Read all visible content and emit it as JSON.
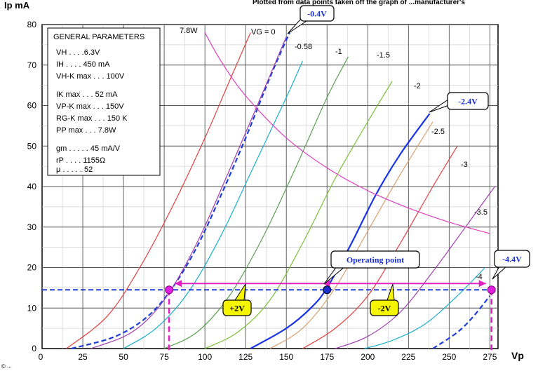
{
  "header_note": "Plotted from data points taken off the graph of ...manufacturer's",
  "copyright": "© ...",
  "chart_data": {
    "type": "line",
    "title": "",
    "xlabel": "Vp",
    "ylabel": "Ip mA",
    "xlim": [
      0,
      280
    ],
    "ylim": [
      0,
      80
    ],
    "x_ticks": [
      0,
      25,
      50,
      75,
      100,
      125,
      150,
      175,
      200,
      225,
      250,
      275
    ],
    "y_ticks": [
      0,
      10,
      20,
      30,
      40,
      50,
      60,
      70,
      80
    ],
    "grid": true,
    "series": [
      {
        "name": "VG = 0",
        "label": "VG = 0",
        "color": "#e0413f",
        "dashed": false,
        "x": [
          15,
          40,
          60,
          80,
          100,
          115,
          128
        ],
        "y": [
          0,
          8,
          20,
          35,
          52,
          66,
          78
        ]
      },
      {
        "name": "-0.4V",
        "label": "-0.4V",
        "color": "#1f3fd8",
        "dashed": true,
        "x": [
          18,
          45,
          65,
          80,
          95,
          110,
          125,
          140,
          152
        ],
        "y": [
          0,
          3,
          8,
          15,
          25,
          38,
          52,
          67,
          78
        ]
      },
      {
        "name": "-0.58",
        "label": "-0.58",
        "color": "#a040b0",
        "dashed": false,
        "x": [
          30,
          55,
          75,
          95,
          115,
          130,
          150
        ],
        "y": [
          0,
          4,
          12,
          26,
          44,
          58,
          77
        ]
      },
      {
        "name": "-1",
        "label": "-1",
        "color": "#1ab0c8",
        "dashed": false,
        "x": [
          50,
          70,
          90,
          110,
          130,
          150,
          160
        ],
        "y": [
          0,
          5,
          14,
          28,
          45,
          62,
          71
        ]
      },
      {
        "name": "-1.5",
        "label": "-1.5",
        "color": "#5aa050",
        "dashed": false,
        "x": [
          75,
          95,
          115,
          135,
          155,
          175,
          188
        ],
        "y": [
          0,
          4,
          13,
          27,
          44,
          62,
          72
        ]
      },
      {
        "name": "-2",
        "label": "-2",
        "color": "#7bbf3a",
        "dashed": false,
        "x": [
          100,
          120,
          140,
          160,
          180,
          200,
          215
        ],
        "y": [
          0,
          4,
          12,
          26,
          42,
          56,
          66
        ]
      },
      {
        "name": "-2.4V",
        "label": "-2.4V",
        "color": "#1832e6",
        "dashed": false,
        "x": [
          128,
          150,
          165,
          175,
          190,
          205,
          220,
          238
        ],
        "y": [
          0,
          5,
          10,
          15,
          26,
          38,
          48,
          58
        ]
      },
      {
        "name": "-2.5",
        "label": "-2.5",
        "color": "#d9a070",
        "dashed": false,
        "x": [
          140,
          160,
          180,
          200,
          220,
          240
        ],
        "y": [
          0,
          5,
          15,
          29,
          43,
          56
        ]
      },
      {
        "name": "-3",
        "label": "-3",
        "color": "#e0413f",
        "dashed": false,
        "x": [
          160,
          180,
          200,
          220,
          240,
          255
        ],
        "y": [
          0,
          5,
          13,
          26,
          40,
          50
        ]
      },
      {
        "name": "-3.5",
        "label": "-3.5",
        "color": "#a040b0",
        "dashed": false,
        "x": [
          180,
          200,
          220,
          240,
          260,
          278
        ],
        "y": [
          0,
          3,
          9,
          19,
          30,
          40
        ]
      },
      {
        "name": "-4",
        "label": "-4",
        "color": "#1ab0c8",
        "dashed": false,
        "x": [
          198,
          215,
          235,
          255,
          272
        ],
        "y": [
          0,
          2,
          6,
          13,
          20
        ]
      },
      {
        "name": "-4.4V",
        "label": "-4.4V",
        "color": "#1f3fd8",
        "dashed": true,
        "x": [
          240,
          255,
          265,
          275
        ],
        "y": [
          0,
          4,
          8,
          13
        ]
      },
      {
        "name": "7.8W",
        "label": "7.8W",
        "color": "#e040c0",
        "dashed": false,
        "x": [
          100,
          110,
          125,
          150,
          175,
          200,
          225,
          250,
          275
        ],
        "y": [
          78,
          70.9,
          62.4,
          52,
          44.6,
          39,
          34.7,
          31.2,
          28.4
        ]
      }
    ],
    "load_line": {
      "y": 14.5,
      "x_from": 0,
      "x_to": 275,
      "color": "#1f3fd8"
    },
    "operating_point": {
      "x": 175,
      "y": 14.5,
      "label": "Operating point"
    },
    "swing_points": [
      {
        "x": 78,
        "y": 14.5
      },
      {
        "x": 276,
        "y": 14.5
      }
    ],
    "swing_labels": [
      "+2V",
      "-2V"
    ],
    "parameters_box": {
      "title": "GENERAL PARAMETERS",
      "lines": [
        "VH . . . .6.3V",
        "IH . . . . 450 mA",
        "VH-K max . . . 100V",
        "IK max . . . 52 mA",
        "VP-K max . . . 150V",
        "RG-K max . . . 150 K",
        "PP max . . . 7.8W",
        "gm . . . . . 45 mA/V",
        "rP . . . . 1155Ω",
        "μ . . . . . 52"
      ]
    }
  }
}
